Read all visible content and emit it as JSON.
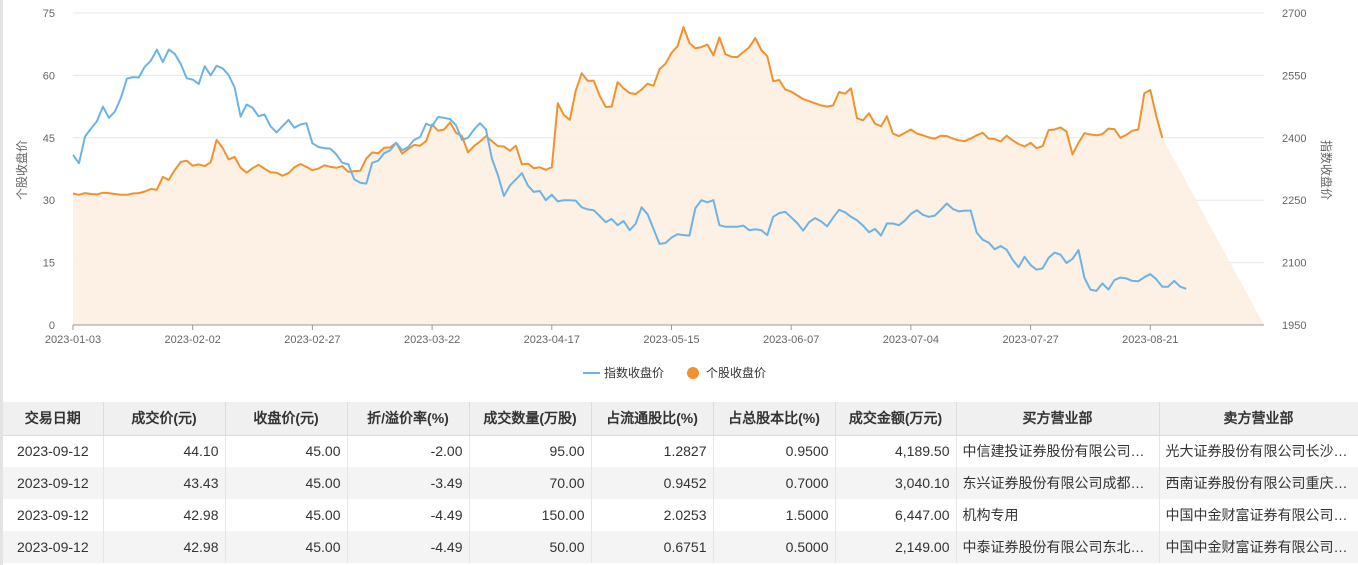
{
  "chart_data": {
    "type": "line",
    "x_ticks": [
      "2023-01-03",
      "2023-02-02",
      "2023-02-27",
      "2023-03-22",
      "2023-04-17",
      "2023-05-15",
      "2023-06-07",
      "2023-07-04",
      "2023-07-27",
      "2023-08-21"
    ],
    "x_tick_index": [
      0,
      20,
      40,
      60,
      80,
      100,
      120,
      140,
      160,
      180
    ],
    "n_points": 200,
    "left_axis": {
      "label": "个股收盘价",
      "range": [
        0,
        75
      ],
      "ticks": [
        "0",
        "15",
        "30",
        "45",
        "60",
        "75"
      ]
    },
    "right_axis": {
      "label": "指数收盘价",
      "range": [
        1950,
        2700
      ],
      "ticks": [
        "1950",
        "2100",
        "2250",
        "2400",
        "2550",
        "2700"
      ]
    },
    "grid": true,
    "legend_position": "bottom-center",
    "series": [
      {
        "name": "指数收盘价",
        "color": "#6cb3e6",
        "axis": "right",
        "values": [
          2359,
          2339,
          2403,
          2422,
          2440,
          2475,
          2448,
          2463,
          2496,
          2542,
          2546,
          2545,
          2571,
          2585,
          2612,
          2582,
          2612,
          2602,
          2578,
          2543,
          2540,
          2529,
          2572,
          2550,
          2573,
          2567,
          2551,
          2521,
          2451,
          2480,
          2472,
          2452,
          2456,
          2428,
          2413,
          2428,
          2443,
          2424,
          2432,
          2435,
          2387,
          2378,
          2375,
          2374,
          2360,
          2340,
          2336,
          2300,
          2292,
          2290,
          2340,
          2345,
          2363,
          2370,
          2388,
          2370,
          2378,
          2395,
          2402,
          2434,
          2428,
          2450,
          2448,
          2445,
          2430,
          2395,
          2400,
          2420,
          2435,
          2420,
          2350,
          2310,
          2260,
          2285,
          2300,
          2315,
          2285,
          2270,
          2272,
          2250,
          2263,
          2247,
          2250,
          2250,
          2249,
          2233,
          2228,
          2226,
          2212,
          2197,
          2205,
          2190,
          2200,
          2178,
          2193,
          2233,
          2216,
          2181,
          2145,
          2147,
          2160,
          2168,
          2166,
          2165,
          2231,
          2250,
          2245,
          2250,
          2190,
          2186,
          2186,
          2186,
          2189,
          2178,
          2180,
          2178,
          2166,
          2210,
          2219,
          2222,
          2209,
          2195,
          2177,
          2197,
          2207,
          2199,
          2187,
          2208,
          2227,
          2221,
          2210,
          2202,
          2189,
          2173,
          2181,
          2165,
          2194,
          2194,
          2190,
          2201,
          2217,
          2226,
          2215,
          2210,
          2213,
          2227,
          2242,
          2229,
          2223,
          2225,
          2225,
          2172,
          2155,
          2148,
          2132,
          2140,
          2131,
          2107,
          2089,
          2114,
          2094,
          2083,
          2086,
          2111,
          2124,
          2119,
          2099,
          2109,
          2130,
          2063,
          2035,
          2032,
          2050,
          2035,
          2058,
          2064,
          2062,
          2056,
          2055,
          2065,
          2072,
          2060,
          2042,
          2042,
          2056,
          2042,
          2037
        ]
      },
      {
        "name": "个股收盘价",
        "color": "#f0922e",
        "axis": "left",
        "values": [
          31.6,
          31.3,
          31.7,
          31.5,
          31.4,
          31.8,
          31.7,
          31.5,
          31.3,
          31.3,
          31.6,
          31.7,
          32.1,
          32.7,
          32.5,
          35.6,
          34.9,
          37.2,
          39.2,
          39.5,
          38.3,
          38.6,
          38.2,
          39.1,
          44.5,
          42.6,
          39.8,
          40.4,
          37.8,
          36.6,
          37.7,
          38.5,
          37.6,
          36.7,
          36.6,
          35.9,
          36.5,
          37.9,
          38.7,
          38.0,
          37.2,
          37.6,
          38.4,
          38.0,
          37.8,
          38.2,
          36.8,
          37.0,
          37.1,
          40.0,
          41.5,
          41.3,
          42.6,
          42.7,
          43.8,
          41.2,
          42.3,
          43.3,
          43.1,
          44.2,
          48.2,
          46.7,
          47.0,
          48.7,
          46.2,
          45.4,
          41.5,
          43.0,
          44.1,
          45.4,
          44.2,
          43.0,
          42.9,
          41.9,
          43.1,
          38.6,
          38.8,
          37.7,
          37.9,
          37.3,
          37.9,
          53.3,
          50.5,
          49.3,
          56.3,
          60.5,
          58.7,
          58.7,
          55.1,
          52.4,
          52.5,
          58.4,
          56.9,
          55.8,
          55.5,
          56.6,
          58.0,
          57.5,
          61.5,
          62.8,
          65.4,
          67.0,
          71.6,
          67.8,
          66.5,
          66.8,
          67.4,
          64.8,
          69.1,
          65.1,
          64.5,
          64.4,
          65.6,
          66.8,
          69.0,
          66.1,
          64.6,
          58.6,
          58.9,
          56.6,
          56.1,
          55.2,
          54.3,
          53.8,
          53.3,
          52.8,
          52.5,
          52.8,
          56.0,
          55.6,
          56.9,
          49.7,
          49.2,
          50.9,
          48.4,
          47.8,
          50.2,
          46.0,
          45.4,
          46.2,
          47.0,
          46.0,
          45.6,
          45.1,
          44.8,
          45.5,
          45.4,
          44.8,
          44.4,
          44.2,
          44.8,
          45.6,
          46.2,
          44.8,
          44.7,
          44.1,
          45.5,
          44.4,
          43.5,
          42.9,
          43.8,
          42.5,
          43.0,
          46.8,
          47.0,
          47.5,
          46.5,
          41.0,
          43.8,
          46.1,
          45.8,
          45.6,
          45.9,
          47.2,
          47.1,
          45.0,
          45.7,
          46.7,
          47.0,
          55.7,
          56.5,
          50.2,
          45.0
        ]
      }
    ]
  },
  "table": {
    "headers": [
      "交易日期",
      "成交价(元)",
      "收盘价(元)",
      "折/溢价率(%)",
      "成交数量(万股)",
      "占流通股比(%)",
      "占总股本比(%)",
      "成交金额(万元)",
      "买方营业部",
      "卖方营业部"
    ],
    "rows": [
      [
        "2023-09-12",
        "44.10",
        "45.00",
        "-2.00",
        "95.00",
        "1.2827",
        "0.9500",
        "4,189.50",
        "中信建投证券股份有限公司…",
        "光大证券股份有限公司长沙…"
      ],
      [
        "2023-09-12",
        "43.43",
        "45.00",
        "-3.49",
        "70.00",
        "0.9452",
        "0.7000",
        "3,040.10",
        "东兴证券股份有限公司成都…",
        "西南证券股份有限公司重庆…"
      ],
      [
        "2023-09-12",
        "42.98",
        "45.00",
        "-4.49",
        "150.00",
        "2.0253",
        "1.5000",
        "6,447.00",
        "机构专用",
        "中国中金财富证券有限公司…"
      ],
      [
        "2023-09-12",
        "42.98",
        "45.00",
        "-4.49",
        "50.00",
        "0.6751",
        "0.5000",
        "2,149.00",
        "中泰证券股份有限公司东北…",
        "中国中金财富证券有限公司…"
      ]
    ]
  }
}
